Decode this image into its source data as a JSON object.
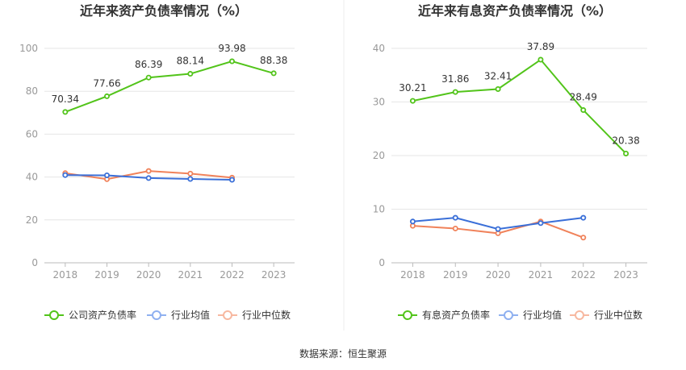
{
  "source": "数据来源：恒生聚源",
  "chart_data": [
    {
      "type": "line",
      "title": "近年来资产负债率情况（%）",
      "categories": [
        "2018",
        "2019",
        "2020",
        "2021",
        "2022",
        "2023"
      ],
      "ylim": [
        0,
        100
      ],
      "yticks": [
        0,
        20,
        40,
        60,
        80,
        100
      ],
      "grid": true,
      "legend": "bottom",
      "xlabel": "",
      "ylabel": "",
      "series": [
        {
          "name": "公司资产负债率",
          "color": "#52c41a",
          "values": [
            70.34,
            77.66,
            86.39,
            88.14,
            93.98,
            88.38
          ],
          "labels": [
            "70.34",
            "77.66",
            "86.39",
            "88.14",
            "93.98",
            "88.38"
          ]
        },
        {
          "name": "行业均值",
          "color": "#3a6fd8",
          "values": [
            40.9,
            40.8,
            39.5,
            39.1,
            38.7,
            null
          ]
        },
        {
          "name": "行业中位数",
          "color": "#f0825a",
          "values": [
            41.8,
            39.0,
            42.8,
            41.6,
            39.7,
            null
          ]
        }
      ]
    },
    {
      "type": "line",
      "title": "近年来有息资产负债率情况（%）",
      "categories": [
        "2018",
        "2019",
        "2020",
        "2021",
        "2022",
        "2023"
      ],
      "ylim": [
        0,
        40
      ],
      "yticks": [
        0,
        10,
        20,
        30,
        40
      ],
      "grid": true,
      "legend": "bottom",
      "xlabel": "",
      "ylabel": "",
      "series": [
        {
          "name": "有息资产负债率",
          "color": "#52c41a",
          "values": [
            30.21,
            31.86,
            32.41,
            37.89,
            28.49,
            20.38
          ],
          "labels": [
            "30.21",
            "31.86",
            "32.41",
            "37.89",
            "28.49",
            "20.38"
          ]
        },
        {
          "name": "行业均值",
          "color": "#3a6fd8",
          "values": [
            7.7,
            8.4,
            6.3,
            7.4,
            8.4,
            null
          ]
        },
        {
          "name": "行业中位数",
          "color": "#f0825a",
          "values": [
            6.9,
            6.4,
            5.5,
            7.7,
            4.7,
            null
          ]
        }
      ]
    }
  ]
}
